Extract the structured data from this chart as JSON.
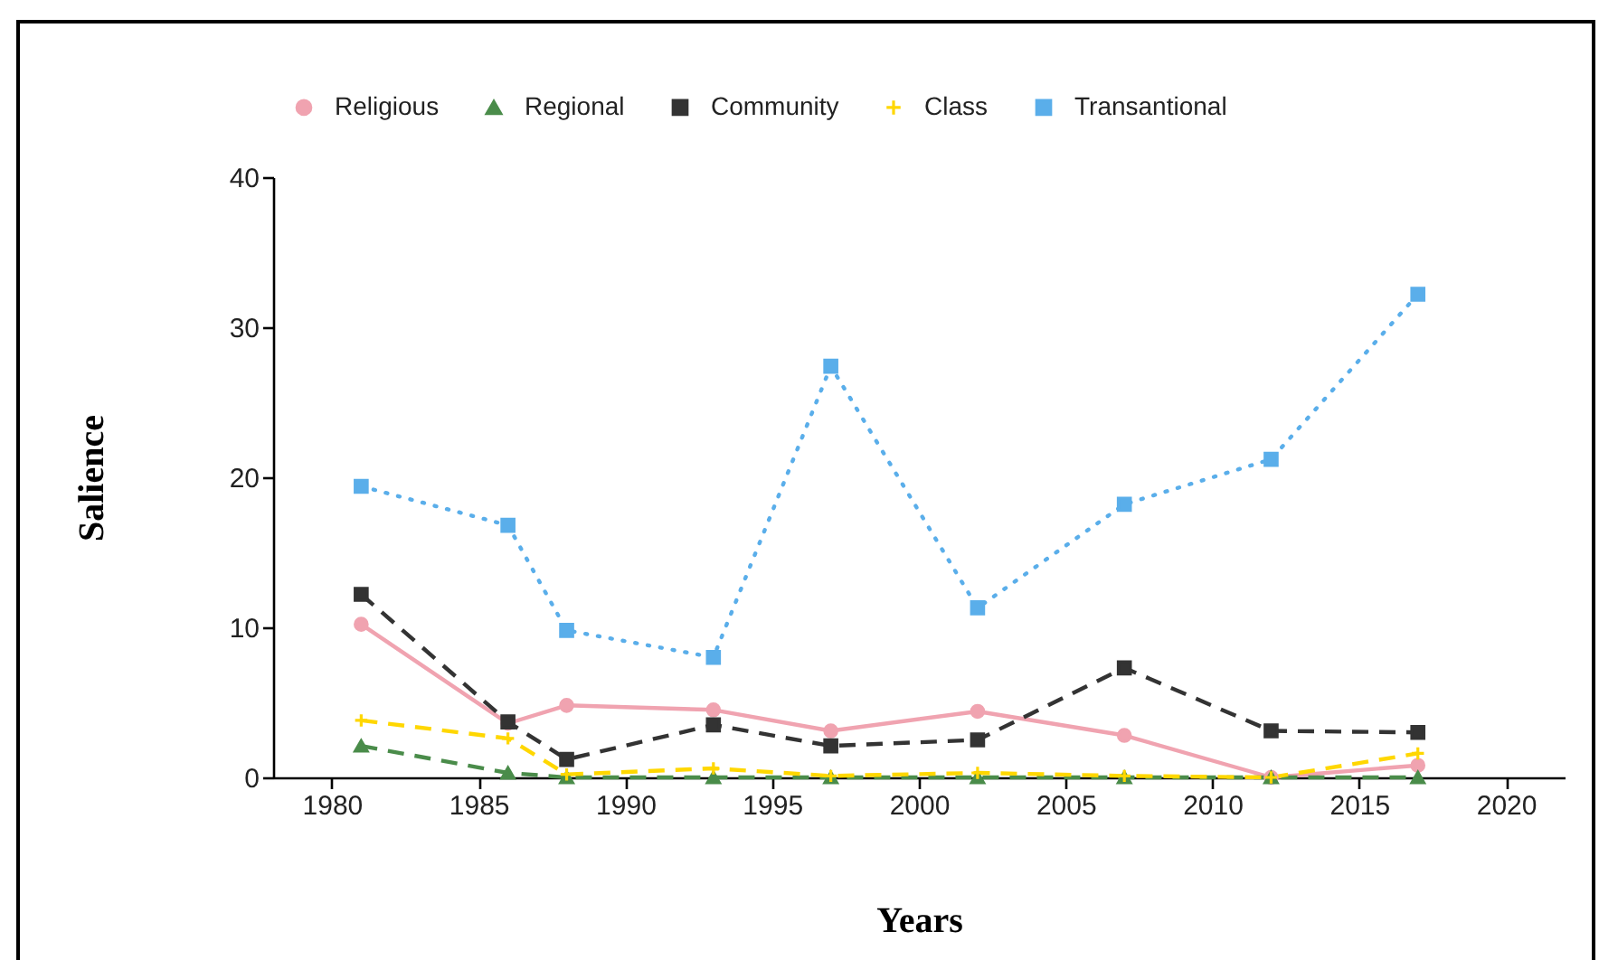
{
  "chart_data": {
    "type": "line",
    "xlabel": "Years",
    "ylabel": "Salience",
    "x": [
      1981,
      1986,
      1988,
      1993,
      1997,
      2002,
      2007,
      2012,
      2017
    ],
    "xlim": [
      1978,
      2022
    ],
    "xticks": [
      1980,
      1985,
      1990,
      1995,
      2000,
      2005,
      2010,
      2015,
      2020
    ],
    "ylim": [
      0,
      40
    ],
    "yticks": [
      0,
      10,
      20,
      30,
      40
    ],
    "legend": "top",
    "series": [
      {
        "name": "Religious",
        "color": "#f0a3b0",
        "marker": "circle",
        "line_style": "solid",
        "values": [
          10.2,
          3.6,
          4.8,
          4.5,
          3.1,
          4.4,
          2.8,
          0,
          0.8
        ]
      },
      {
        "name": "Regional",
        "color": "#4a8c4a",
        "marker": "triangle",
        "line_style": "dashed",
        "values": [
          2.1,
          0.3,
          0,
          0,
          0,
          0,
          0,
          0,
          0
        ]
      },
      {
        "name": "Community",
        "color": "#333333",
        "marker": "square",
        "line_style": "dashed",
        "values": [
          12.2,
          3.7,
          1.2,
          3.5,
          2.1,
          2.5,
          7.3,
          3.1,
          3.0
        ]
      },
      {
        "name": "Class",
        "color": "#ffd700",
        "marker": "cross",
        "line_style": "dashed",
        "values": [
          3.8,
          2.6,
          0.2,
          0.6,
          0.1,
          0.3,
          0.1,
          0,
          1.6
        ]
      },
      {
        "name": "Transantional",
        "color": "#5aaeea",
        "marker": "square",
        "line_style": "dotted",
        "values": [
          19.4,
          16.8,
          9.8,
          8.0,
          27.4,
          11.3,
          18.2,
          21.2,
          32.2
        ]
      }
    ]
  }
}
